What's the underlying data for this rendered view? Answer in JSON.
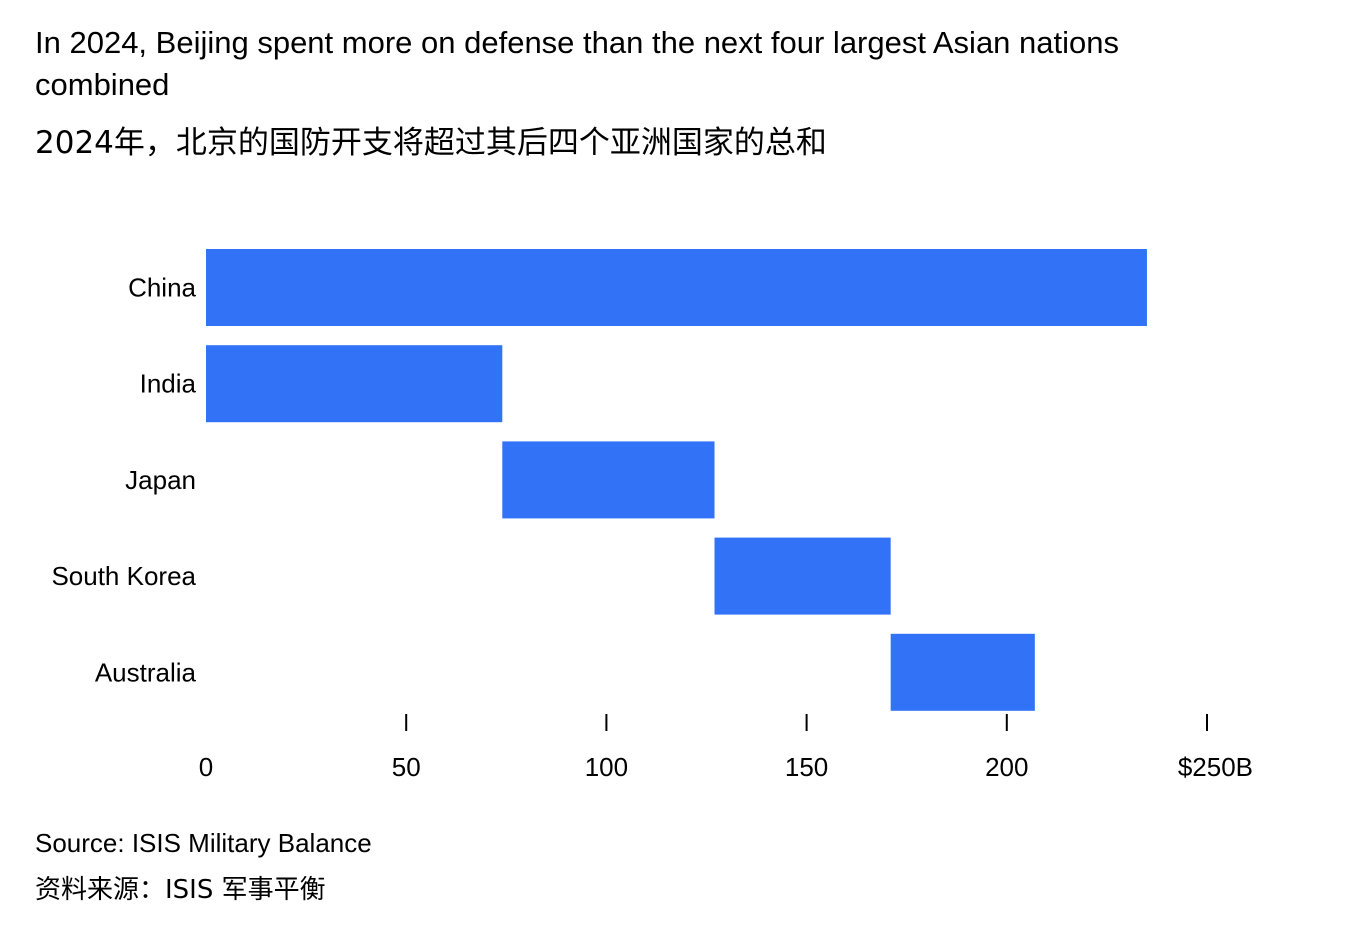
{
  "title": "In 2024, Beijing spent more on defense than the next four largest Asian nations combined",
  "subtitle": "2024年，北京的国防开支将超过其后四个亚洲国家的总和",
  "source": "Source: ISIS Military Balance",
  "source_zh": "资料来源：ISIS 军事平衡",
  "colors": {
    "bar": "#3272f6",
    "tick": "#000000"
  },
  "chart_data": {
    "type": "bar",
    "orientation": "horizontal",
    "style": "waterfall",
    "categories": [
      "China",
      "India",
      "Japan",
      "South Korea",
      "Australia"
    ],
    "series": [
      {
        "start": [
          0,
          0,
          74,
          127,
          171
        ],
        "end": [
          235,
          74,
          127,
          171,
          207
        ]
      }
    ],
    "values": [
      235,
      74,
      53,
      44,
      36
    ],
    "xlim": [
      0,
      250
    ],
    "xticks": [
      0,
      50,
      100,
      150,
      200,
      250
    ],
    "xtick_labels": [
      "0",
      "50",
      "100",
      "150",
      "200",
      "$250B"
    ],
    "grid": false,
    "legend": "none"
  }
}
